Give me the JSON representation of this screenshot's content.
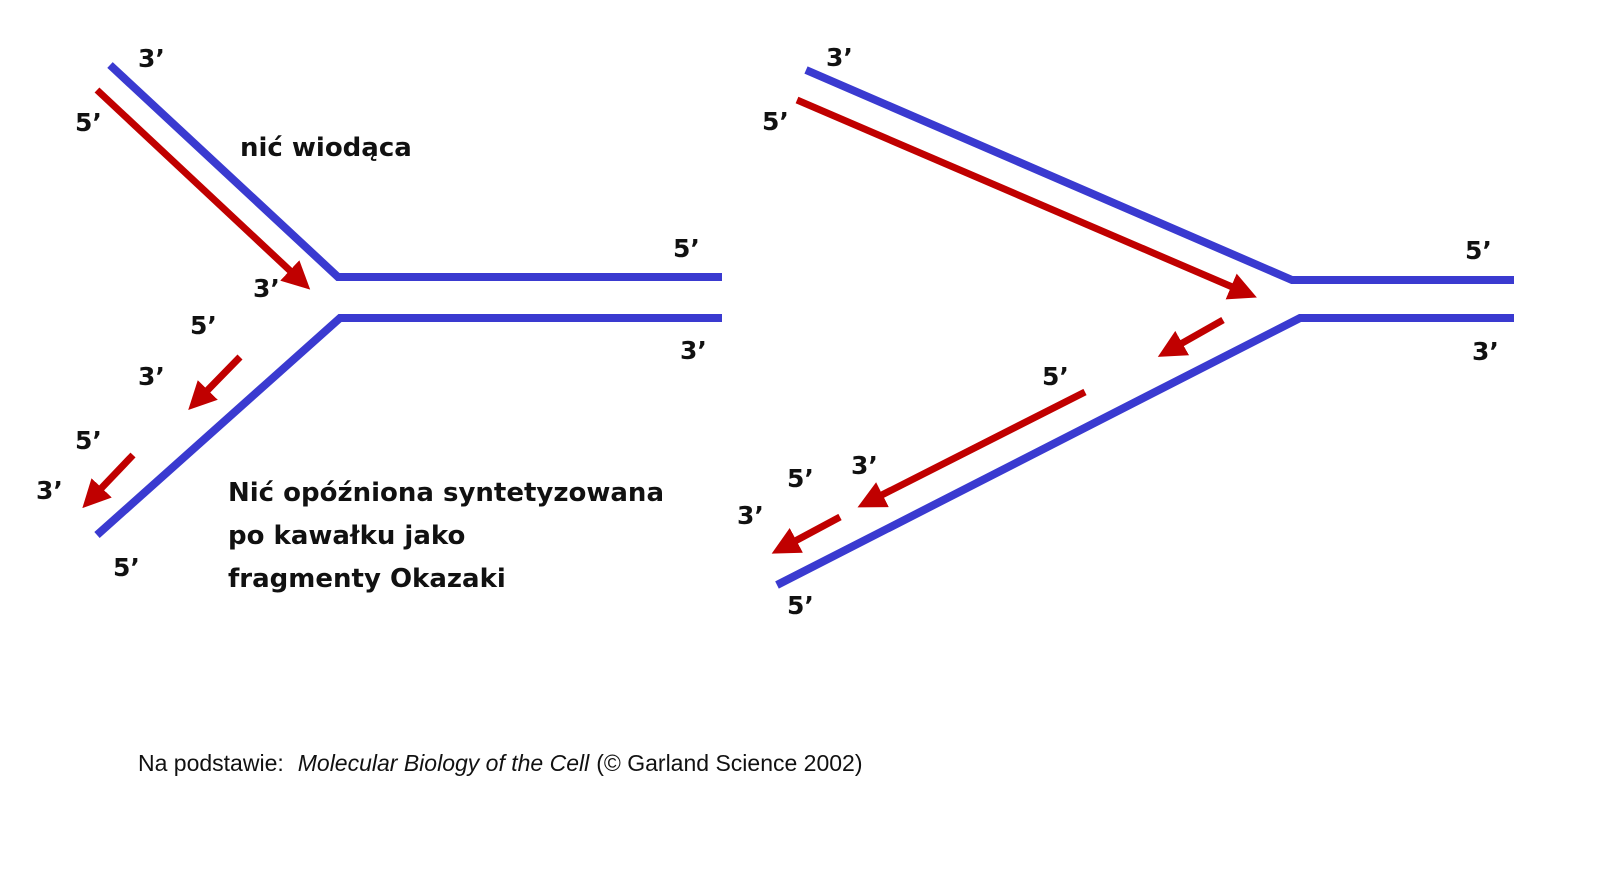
{
  "left_fork": {
    "labels": [
      "3’",
      "5’",
      "3’",
      "5’",
      "3’",
      "5’",
      "3’",
      "5’",
      "5’",
      "3’"
    ],
    "leading_strand": "nić wiodąca",
    "lagging_strand": [
      "Nić opóźniona syntetyzowana",
      "po kawałku jako",
      "fragmenty Okazaki"
    ]
  },
  "right_fork": {
    "labels": [
      "3’",
      "5’",
      "5’",
      "3’",
      "5’",
      "3’",
      "5’",
      "3’",
      "5’"
    ]
  },
  "citation": {
    "prefix": "Na podstawie:",
    "title": "Molecular Biology of the Cell",
    "suffix": "(© Garland Science 2002)"
  }
}
